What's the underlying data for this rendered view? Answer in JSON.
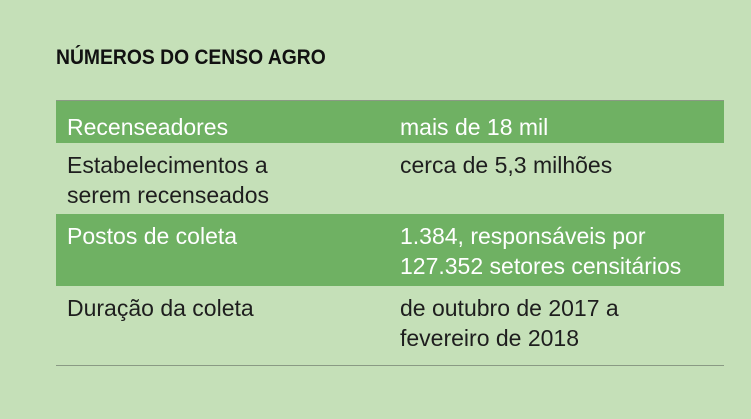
{
  "title": "NÚMEROS DO CENSO AGRO",
  "colors": {
    "background": "#c5e0b8",
    "highlight_row": "#6fb163"
  },
  "rows": [
    {
      "label": "Recenseadores",
      "value": "mais de 18 mil"
    },
    {
      "label": "Estabelecimentos a\nserem recenseados",
      "value": "cerca de 5,3 milhões"
    },
    {
      "label": "Postos de coleta",
      "value": "1.384, responsáveis por\n127.352 setores censitários"
    },
    {
      "label": "Duração da coleta",
      "value": "de outubro de 2017 a\nfevereiro de 2018"
    }
  ]
}
